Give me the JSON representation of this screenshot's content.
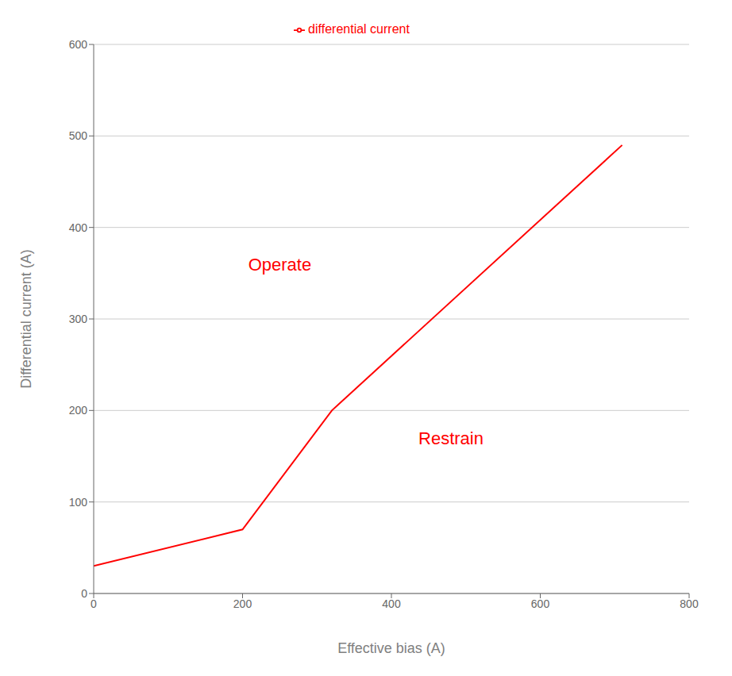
{
  "chart_data": {
    "type": "line",
    "xlabel": "Effective bias (A)",
    "ylabel": "Differential current (A)",
    "x": [
      0,
      200,
      320,
      710
    ],
    "series": [
      {
        "name": "differential current",
        "color": "#ff0000",
        "values": [
          30,
          70,
          200,
          490
        ]
      }
    ],
    "xlim": [
      0,
      800
    ],
    "ylim": [
      0,
      600
    ],
    "xticks": [
      0,
      200,
      400,
      600,
      800
    ],
    "yticks": [
      0,
      100,
      200,
      300,
      400,
      500,
      600
    ],
    "grid": "y",
    "legend": "top",
    "annotations": [
      {
        "text": "Operate",
        "x": 250,
        "y": 360
      },
      {
        "text": "Restrain",
        "x": 480,
        "y": 170
      }
    ]
  }
}
